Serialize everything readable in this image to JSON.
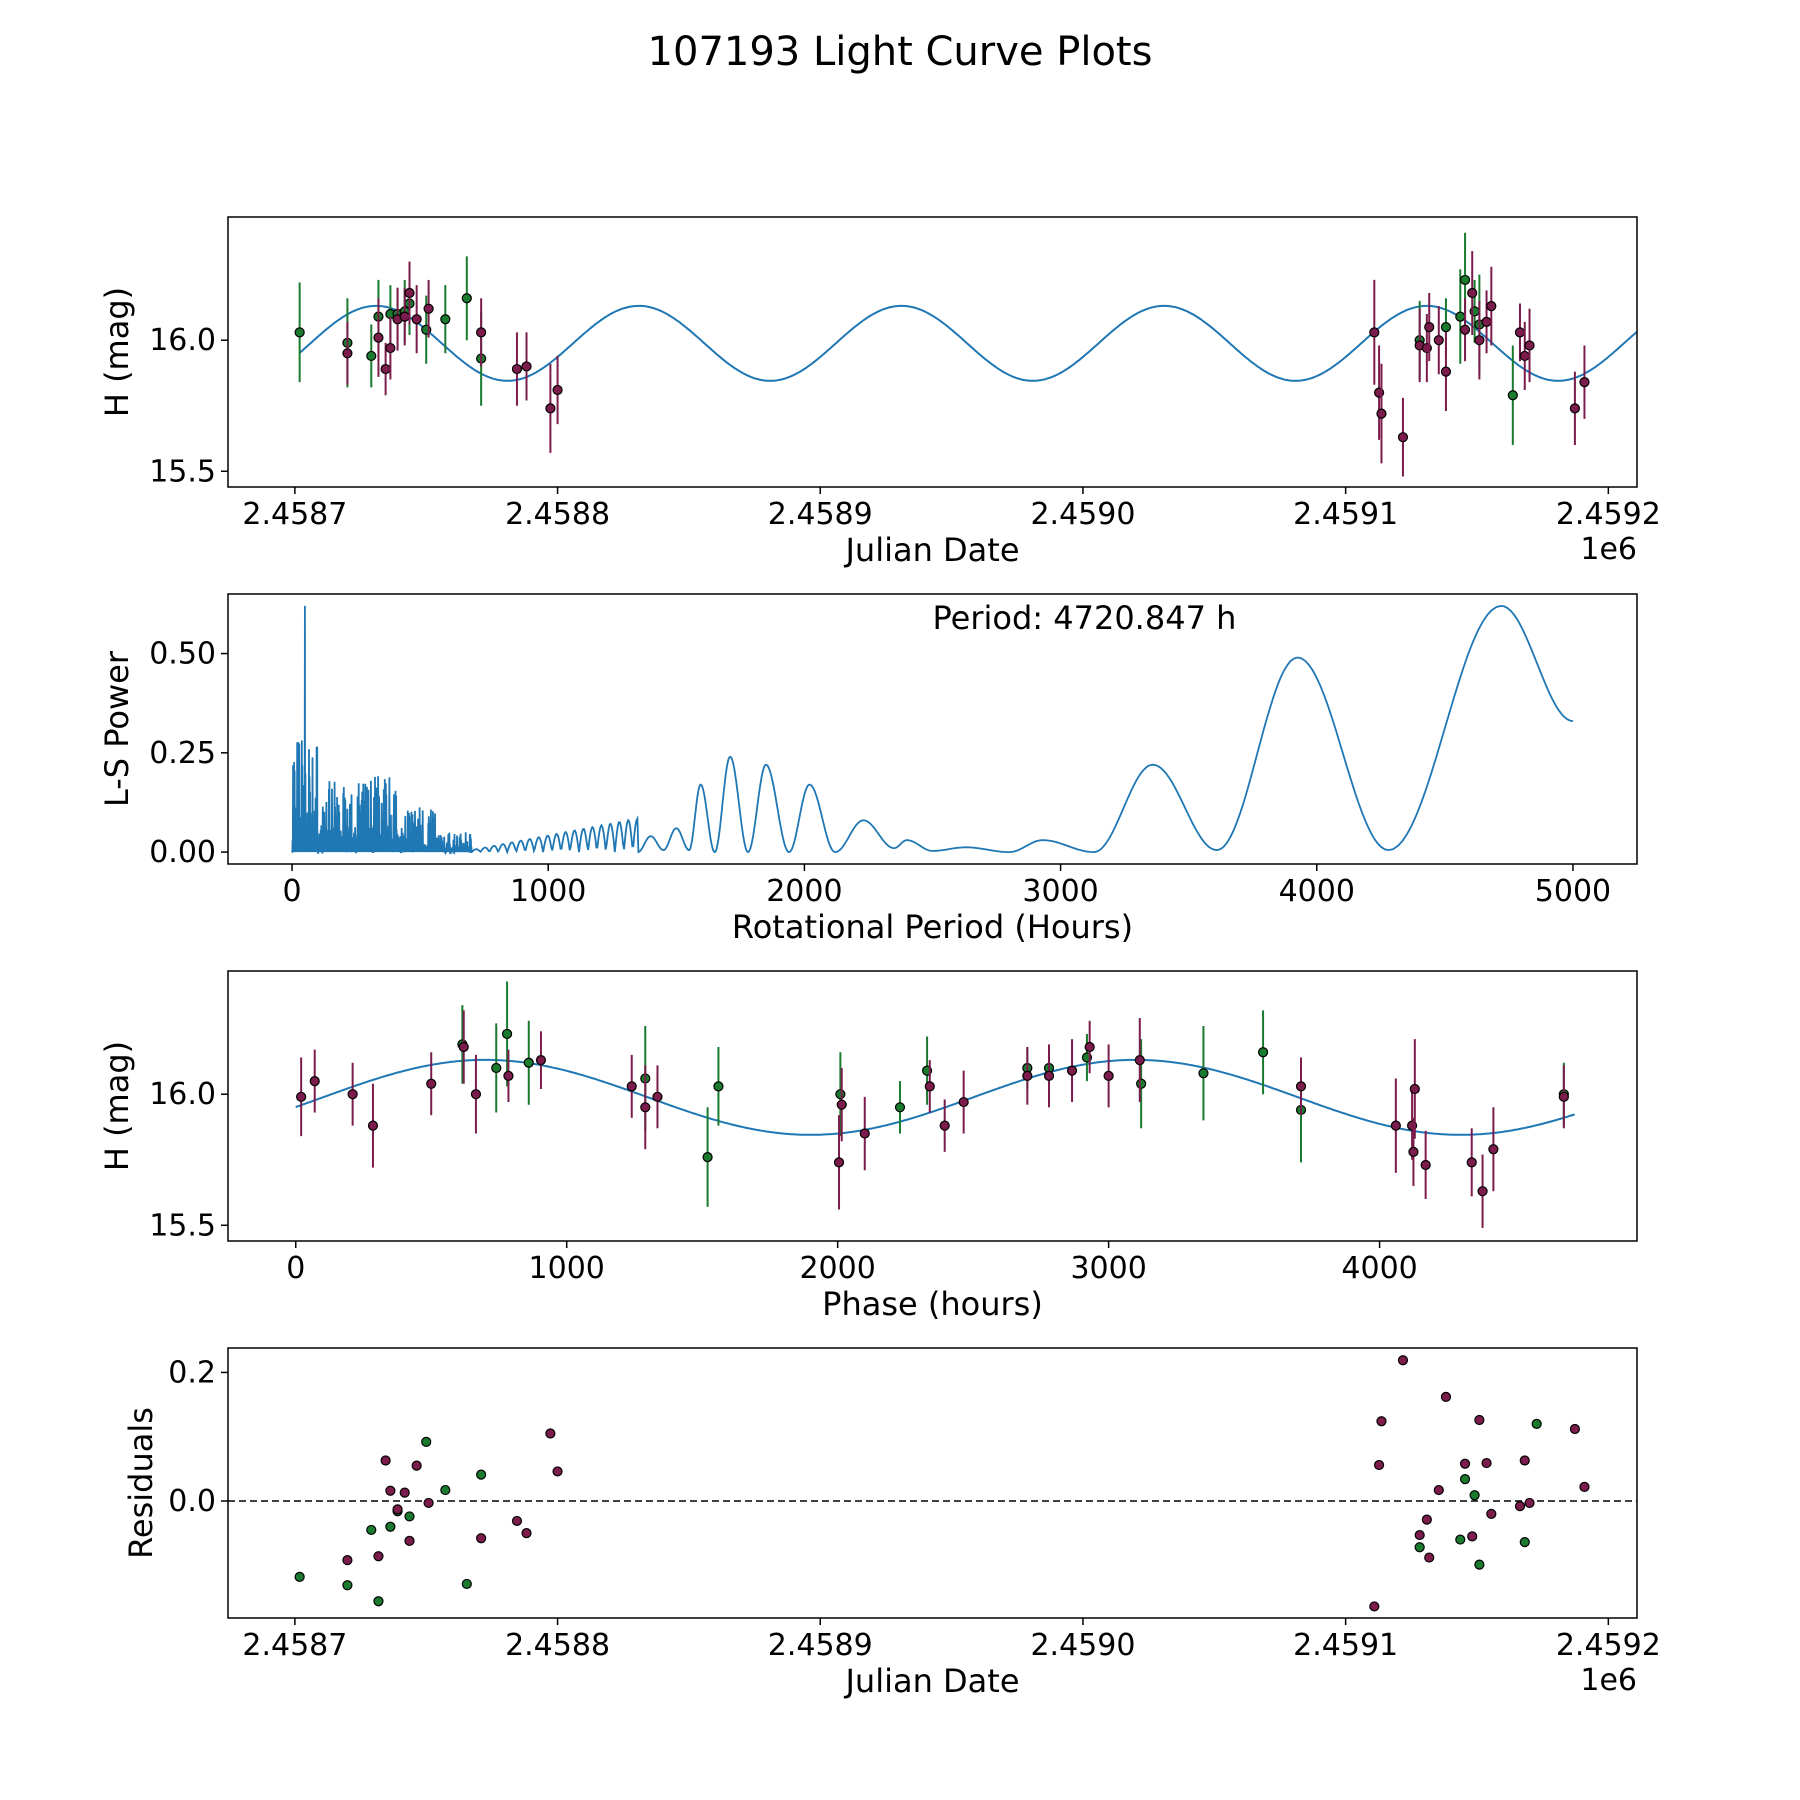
{
  "figure": {
    "title": "107193 Light Curve Plots",
    "colors": {
      "model": "#1f77b4",
      "green": "#1a7a2e",
      "maroon": "#7b1c4c",
      "edge": "#000000"
    }
  },
  "chart_data": [
    {
      "id": "lightcurve",
      "type": "scatter",
      "xlabel": "Julian Date",
      "ylabel": "H (mag)",
      "x_offset_label": "1e6",
      "x_offset": 2400000,
      "xlim": [
        58642,
        59232
      ],
      "ylim": [
        15.44,
        16.47
      ],
      "xticks": [
        58670,
        58780,
        58890,
        59000,
        59110,
        59220
      ],
      "xtick_labels": [
        "2.4587",
        "2.4588",
        "2.4589",
        "2.4590",
        "2.4591",
        "2.4592"
      ],
      "yticks": [
        15.5,
        16.0
      ],
      "ytick_labels": [
        "15.5",
        "16.0"
      ],
      "model": {
        "mean": 15.988,
        "amplitude": 0.143,
        "period_days": 110.0,
        "ref_x": 58704,
        "x_range": [
          58672,
          59235
        ]
      },
      "series": [
        {
          "name": "green",
          "points": [
            [
              58672,
              16.03,
              0.19
            ],
            [
              58692,
              15.99,
              0.17
            ],
            [
              58702,
              15.94,
              0.12
            ],
            [
              58705,
              16.09,
              0.14
            ],
            [
              58710,
              16.1,
              0.11
            ],
            [
              58713,
              16.1,
              0.1
            ],
            [
              58716,
              16.11,
              0.12
            ],
            [
              58718,
              16.14,
              0.12
            ],
            [
              58725,
              16.04,
              0.13
            ],
            [
              58733,
              16.08,
              0.13
            ],
            [
              58742,
              16.16,
              0.16
            ],
            [
              58748,
              15.93,
              0.18
            ],
            [
              59141,
              16.0,
              0.15
            ],
            [
              59152,
              16.05,
              0.11
            ],
            [
              59158,
              16.09,
              0.18
            ],
            [
              59160,
              16.23,
              0.18
            ],
            [
              59164,
              16.11,
              0.12
            ],
            [
              59166,
              16.06,
              0.19
            ],
            [
              59180,
              15.79,
              0.19
            ]
          ]
        },
        {
          "name": "maroon",
          "points": [
            [
              58692,
              15.95,
              0.12
            ],
            [
              58705,
              16.01,
              0.15
            ],
            [
              58708,
              15.89,
              0.1
            ],
            [
              58710,
              15.97,
              0.12
            ],
            [
              58713,
              16.08,
              0.12
            ],
            [
              58716,
              16.09,
              0.11
            ],
            [
              58718,
              16.18,
              0.12
            ],
            [
              58721,
              16.08,
              0.13
            ],
            [
              58726,
              16.12,
              0.11
            ],
            [
              58748,
              16.03,
              0.13
            ],
            [
              58763,
              15.89,
              0.14
            ],
            [
              58767,
              15.9,
              0.13
            ],
            [
              58777,
              15.74,
              0.17
            ],
            [
              58780,
              15.81,
              0.13
            ],
            [
              59122,
              16.03,
              0.2
            ],
            [
              59124,
              15.8,
              0.18
            ],
            [
              59125,
              15.72,
              0.19
            ],
            [
              59134,
              15.63,
              0.15
            ],
            [
              59141,
              15.98,
              0.14
            ],
            [
              59144,
              15.97,
              0.13
            ],
            [
              59145,
              16.05,
              0.13
            ],
            [
              59149,
              16.0,
              0.13
            ],
            [
              59152,
              15.88,
              0.15
            ],
            [
              59160,
              16.04,
              0.12
            ],
            [
              59163,
              16.18,
              0.16
            ],
            [
              59166,
              16.0,
              0.15
            ],
            [
              59169,
              16.07,
              0.12
            ],
            [
              59171,
              16.13,
              0.15
            ],
            [
              59183,
              16.03,
              0.11
            ],
            [
              59185,
              15.94,
              0.13
            ],
            [
              59187,
              15.98,
              0.14
            ],
            [
              59206,
              15.74,
              0.14
            ],
            [
              59210,
              15.84,
              0.14
            ]
          ]
        }
      ]
    },
    {
      "id": "periodogram",
      "type": "line",
      "xlabel": "Rotational Period (Hours)",
      "ylabel": "L-S Power",
      "annotation": "Period: 4720.847 h",
      "xlim": [
        -250,
        5250
      ],
      "ylim": [
        -0.03,
        0.65
      ],
      "xticks": [
        0,
        1000,
        2000,
        3000,
        4000,
        5000
      ],
      "xtick_labels": [
        "0",
        "1000",
        "2000",
        "3000",
        "4000",
        "5000"
      ],
      "yticks": [
        0.0,
        0.25,
        0.5
      ],
      "ytick_labels": [
        "0.00",
        "0.25",
        "0.50"
      ],
      "x_range": [
        0,
        5000
      ],
      "spike": {
        "x": 50,
        "power": 0.62
      },
      "peaks": [
        [
          1400,
          0.04
        ],
        [
          1500,
          0.06
        ],
        [
          1595,
          0.17
        ],
        [
          1710,
          0.24
        ],
        [
          1850,
          0.22
        ],
        [
          2020,
          0.17
        ],
        [
          2230,
          0.08
        ],
        [
          2400,
          0.03
        ],
        [
          2630,
          0.012
        ],
        [
          2930,
          0.03
        ],
        [
          3360,
          0.22
        ],
        [
          3925,
          0.49
        ],
        [
          4720,
          0.62
        ]
      ],
      "troughs": [
        [
          1450,
          0.005
        ],
        [
          1550,
          0.005
        ],
        [
          1650,
          0.0
        ],
        [
          1780,
          0.0
        ],
        [
          1940,
          0.0
        ],
        [
          2120,
          0.0
        ],
        [
          2350,
          0.01
        ],
        [
          2500,
          0.003
        ],
        [
          2800,
          0.0
        ],
        [
          3130,
          0.0
        ],
        [
          3610,
          0.005
        ],
        [
          4280,
          0.005
        ]
      ],
      "end": [
        5000,
        0.33
      ]
    },
    {
      "id": "phased",
      "type": "scatter",
      "xlabel": "Phase (hours)",
      "ylabel": "H (mag)",
      "xlim": [
        -250,
        4950
      ],
      "ylim": [
        15.44,
        16.47
      ],
      "xticks": [
        0,
        1000,
        2000,
        3000,
        4000
      ],
      "xtick_labels": [
        "0",
        "1000",
        "2000",
        "3000",
        "4000"
      ],
      "yticks": [
        15.5,
        16.0
      ],
      "ytick_labels": [
        "15.5",
        "16.0"
      ],
      "model": {
        "mean": 15.988,
        "amplitude": 0.143,
        "period": 2400,
        "peak_x": 700,
        "x_range": [
          0,
          4720
        ]
      },
      "series": [
        {
          "name": "green",
          "points": [
            [
              615,
              16.19,
              0.15
            ],
            [
              740,
              16.1,
              0.17
            ],
            [
              780,
              16.23,
              0.2
            ],
            [
              860,
              16.12,
              0.16
            ],
            [
              1290,
              16.06,
              0.2
            ],
            [
              1520,
              15.76,
              0.19
            ],
            [
              1560,
              16.03,
              0.15
            ],
            [
              2010,
              16.0,
              0.16
            ],
            [
              2230,
              15.95,
              0.1
            ],
            [
              2330,
              16.09,
              0.13
            ],
            [
              2700,
              16.1,
              0.08
            ],
            [
              2780,
              16.1,
              0.08
            ],
            [
              2920,
              16.14,
              0.09
            ],
            [
              3120,
              16.04,
              0.17
            ],
            [
              3350,
              16.08,
              0.18
            ],
            [
              3570,
              16.16,
              0.16
            ],
            [
              3710,
              15.94,
              0.2
            ],
            [
              4680,
              16.0,
              0.12
            ]
          ]
        },
        {
          "name": "maroon",
          "points": [
            [
              20,
              15.99,
              0.15
            ],
            [
              70,
              16.05,
              0.12
            ],
            [
              210,
              16.0,
              0.12
            ],
            [
              285,
              15.88,
              0.16
            ],
            [
              500,
              16.04,
              0.12
            ],
            [
              620,
              16.18,
              0.14
            ],
            [
              665,
              16.0,
              0.15
            ],
            [
              785,
              16.07,
              0.1
            ],
            [
              905,
              16.13,
              0.11
            ],
            [
              1240,
              16.03,
              0.12
            ],
            [
              1290,
              15.95,
              0.16
            ],
            [
              1335,
              15.99,
              0.12
            ],
            [
              2005,
              15.74,
              0.18
            ],
            [
              2015,
              15.96,
              0.14
            ],
            [
              2100,
              15.85,
              0.14
            ],
            [
              2395,
              15.88,
              0.1
            ],
            [
              2340,
              16.03,
              0.1
            ],
            [
              2465,
              15.97,
              0.12
            ],
            [
              2700,
              16.07,
              0.11
            ],
            [
              2780,
              16.07,
              0.12
            ],
            [
              2865,
              16.09,
              0.12
            ],
            [
              2930,
              16.18,
              0.1
            ],
            [
              3000,
              16.07,
              0.12
            ],
            [
              3115,
              16.13,
              0.16
            ],
            [
              3710,
              16.03,
              0.11
            ],
            [
              4060,
              15.88,
              0.18
            ],
            [
              4120,
              15.88,
              0.13
            ],
            [
              4125,
              15.78,
              0.13
            ],
            [
              4130,
              16.02,
              0.19
            ],
            [
              4170,
              15.73,
              0.13
            ],
            [
              4340,
              15.74,
              0.13
            ],
            [
              4380,
              15.63,
              0.14
            ],
            [
              4420,
              15.79,
              0.16
            ],
            [
              4680,
              15.99,
              0.12
            ]
          ]
        }
      ]
    },
    {
      "id": "residuals",
      "type": "scatter",
      "xlabel": "Julian Date",
      "ylabel": "Residuals",
      "x_offset_label": "1e6",
      "x_offset": 2400000,
      "xlim": [
        58642,
        59232
      ],
      "ylim": [
        -0.182,
        0.238
      ],
      "xticks": [
        58670,
        58780,
        58890,
        59000,
        59110,
        59220
      ],
      "xtick_labels": [
        "2.4587",
        "2.4588",
        "2.4589",
        "2.4590",
        "2.4591",
        "2.4592"
      ],
      "yticks": [
        0.0,
        0.2
      ],
      "ytick_labels": [
        "0.0",
        "0.2"
      ],
      "zero_line": 0.0,
      "series": [
        {
          "name": "green",
          "points": [
            [
              58672,
              -0.118
            ],
            [
              58692,
              -0.131
            ],
            [
              58702,
              -0.045
            ],
            [
              58705,
              -0.156
            ],
            [
              58710,
              -0.04
            ],
            [
              58713,
              -0.016
            ],
            [
              58718,
              -0.024
            ],
            [
              58725,
              0.092
            ],
            [
              58733,
              0.017
            ],
            [
              58742,
              -0.129
            ],
            [
              58748,
              0.041
            ],
            [
              59141,
              -0.072
            ],
            [
              59158,
              -0.06
            ],
            [
              59160,
              0.034
            ],
            [
              59164,
              0.009
            ],
            [
              59166,
              -0.099
            ],
            [
              59185,
              -0.064
            ],
            [
              59190,
              0.12
            ]
          ]
        },
        {
          "name": "maroon",
          "points": [
            [
              58692,
              -0.092
            ],
            [
              58705,
              -0.086
            ],
            [
              58708,
              0.063
            ],
            [
              58710,
              0.016
            ],
            [
              58713,
              -0.013
            ],
            [
              58716,
              0.013
            ],
            [
              58718,
              -0.062
            ],
            [
              58721,
              0.055
            ],
            [
              58726,
              -0.003
            ],
            [
              58748,
              -0.058
            ],
            [
              58763,
              -0.031
            ],
            [
              58767,
              -0.05
            ],
            [
              58777,
              0.105
            ],
            [
              58780,
              0.046
            ],
            [
              59122,
              -0.164
            ],
            [
              59124,
              0.056
            ],
            [
              59125,
              0.124
            ],
            [
              59134,
              0.219
            ],
            [
              59141,
              -0.053
            ],
            [
              59144,
              -0.029
            ],
            [
              59145,
              -0.088
            ],
            [
              59149,
              0.017
            ],
            [
              59152,
              0.162
            ],
            [
              59160,
              0.058
            ],
            [
              59163,
              -0.055
            ],
            [
              59166,
              0.126
            ],
            [
              59169,
              0.059
            ],
            [
              59171,
              -0.02
            ],
            [
              59183,
              -0.008
            ],
            [
              59185,
              0.063
            ],
            [
              59187,
              -0.003
            ],
            [
              59206,
              0.112
            ],
            [
              59210,
              0.022
            ]
          ]
        }
      ]
    }
  ]
}
